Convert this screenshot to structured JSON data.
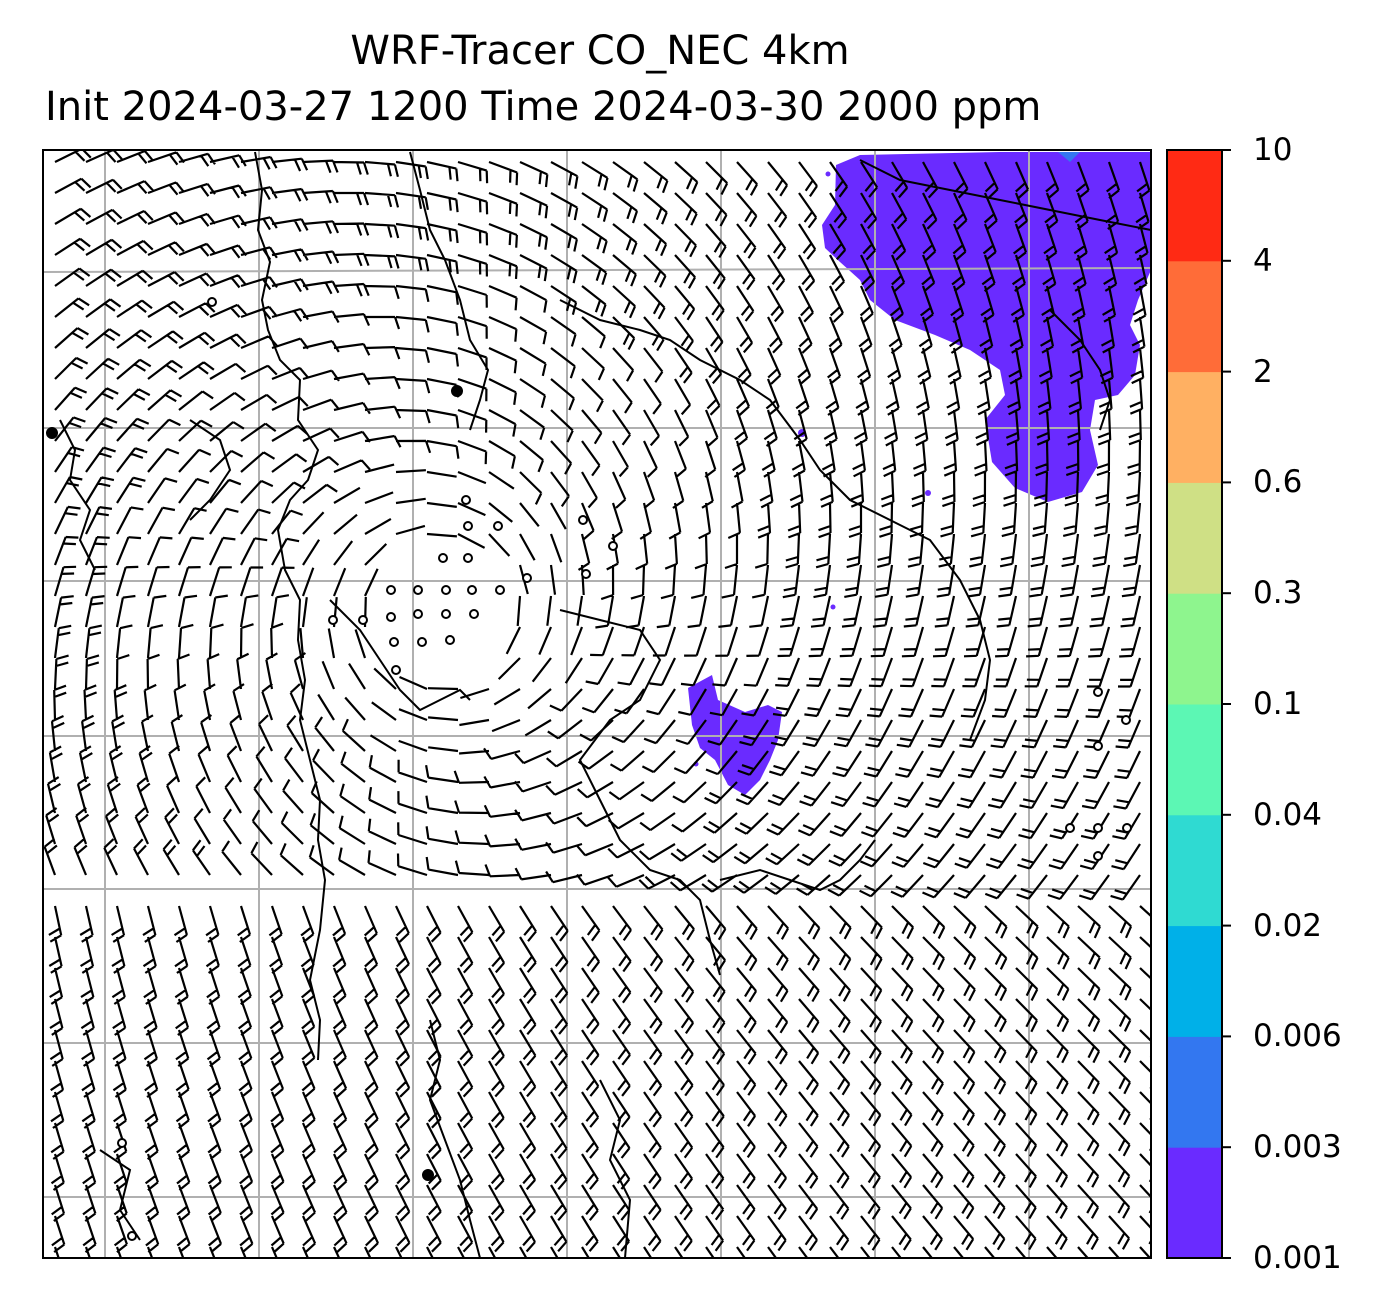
{
  "title_line1": "WRF-Tracer CO_NEC 4km",
  "title_line2": "Init 2024-03-27 1200 Time 2024-03-30 2000 ppm",
  "colorbar": {
    "levels": [
      "0.001",
      "0.003",
      "0.006",
      "0.02",
      "0.04",
      "0.1",
      "0.3",
      "0.6",
      "2",
      "4",
      "10"
    ],
    "colors": [
      "#6a2bff",
      "#3377f0",
      "#00b0e8",
      "#2fdad2",
      "#5cf7b4",
      "#8ef58e",
      "#cfe085",
      "#ffb062",
      "#ff6c38",
      "#ff2a14"
    ]
  },
  "map": {
    "contour_fill_color": "#6a2bff",
    "coastline_color": "#000000",
    "gridline_color": "#b0b0b0",
    "barb_color": "#000000"
  }
}
